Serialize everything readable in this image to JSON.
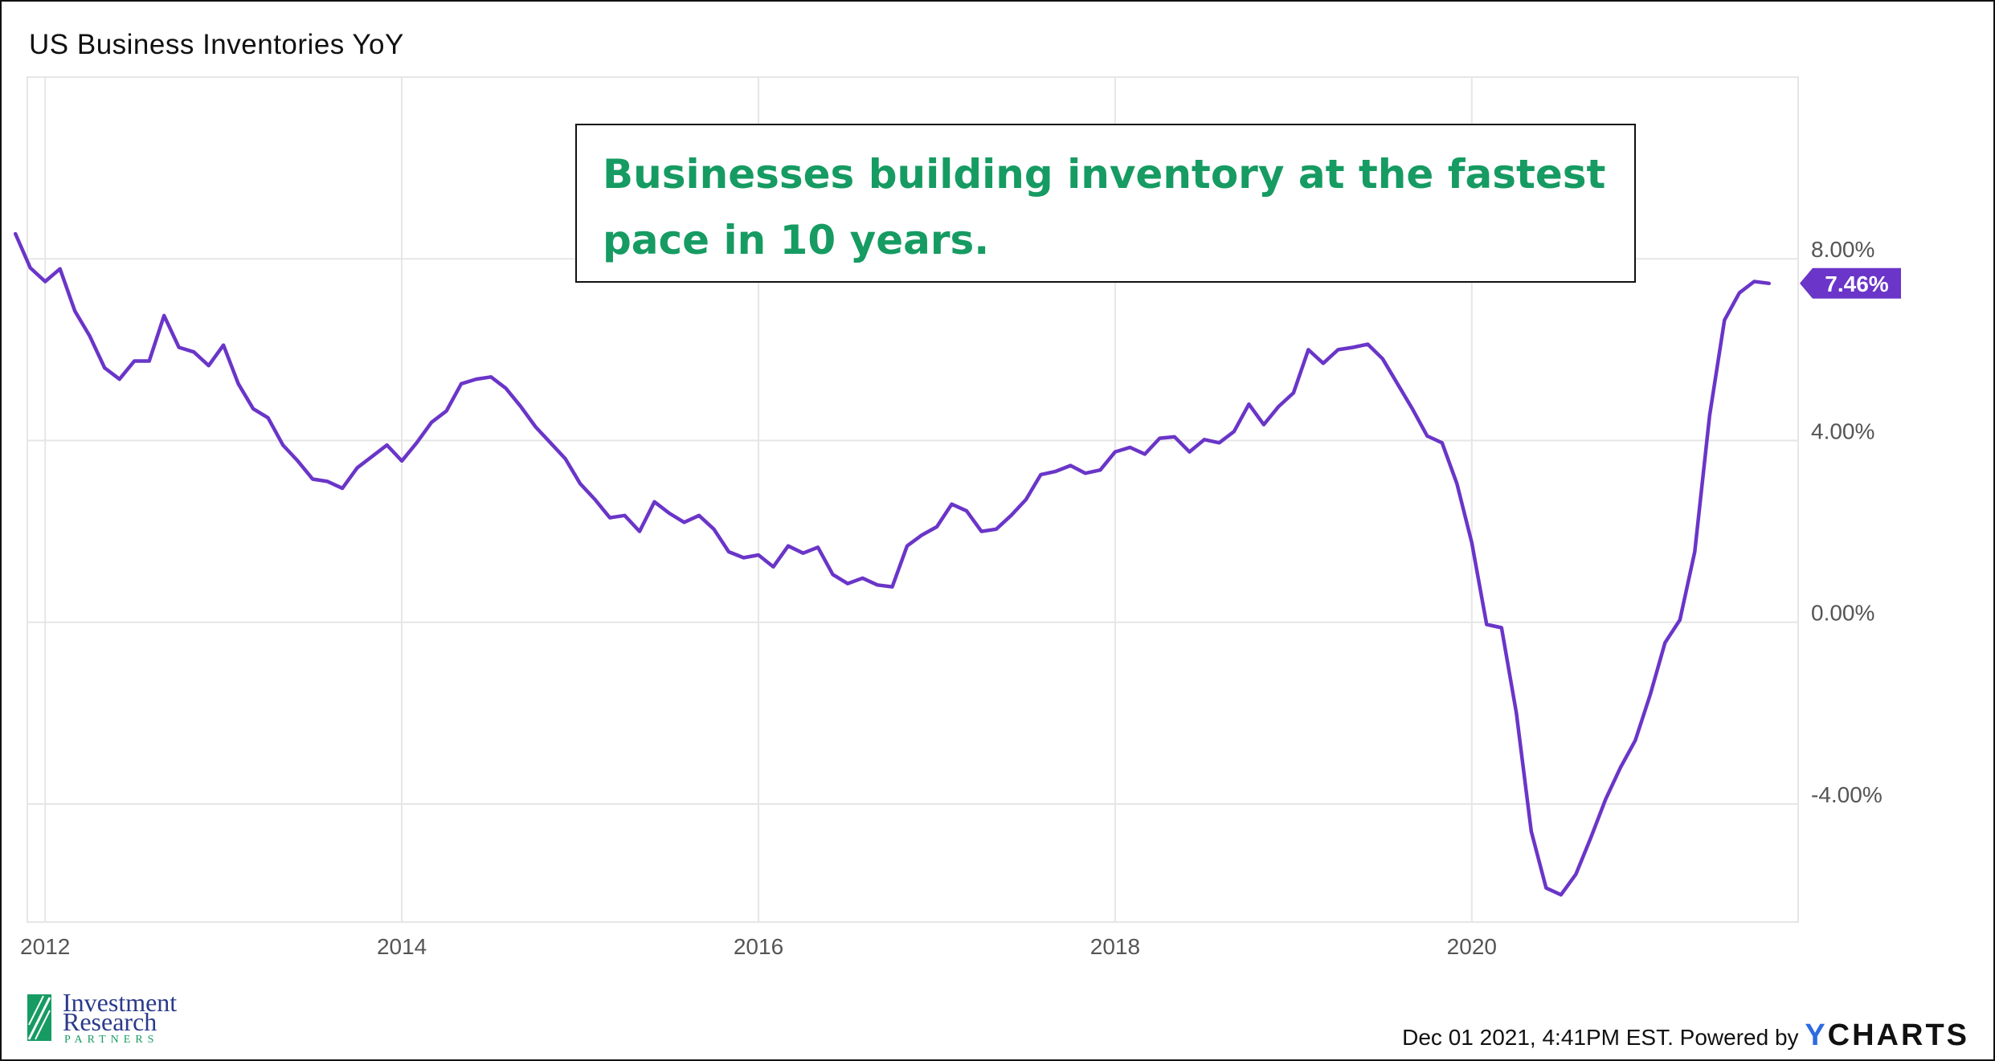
{
  "title": "US Business Inventories YoY",
  "annotation": "Businesses building inventory at the fastest pace in 10 years.",
  "footer": {
    "timestamp": "Dec 01 2021, 4:41PM EST. Powered by",
    "brand_y": "Y",
    "brand_rest": "CHARTS"
  },
  "logo": {
    "line1": "Investment",
    "line2": "Research",
    "line3": "PARTNERS"
  },
  "colors": {
    "series": "#6a35c8",
    "annotation_text": "#169B62",
    "grid": "#e6e6e6"
  },
  "chart_data": {
    "type": "line",
    "title": "US Business Inventories YoY",
    "xlim": [
      2011.9,
      2021.83
    ],
    "ylim": [
      -6.6,
      12.0
    ],
    "x_ticks": [
      {
        "value": 2012,
        "label": "2012"
      },
      {
        "value": 2014,
        "label": "2014"
      },
      {
        "value": 2016,
        "label": "2016"
      },
      {
        "value": 2018,
        "label": "2018"
      },
      {
        "value": 2020,
        "label": "2020"
      }
    ],
    "y_ticks": [
      {
        "value": 8,
        "label": "8.00%"
      },
      {
        "value": 4,
        "label": "4.00%"
      },
      {
        "value": 0,
        "label": "0.00%"
      },
      {
        "value": -4,
        "label": "-4.00%"
      }
    ],
    "last_value_label": "7.46%",
    "series": [
      {
        "start": "2011-11",
        "frequency": "monthly",
        "values": [
          8.55,
          7.8,
          7.5,
          7.78,
          6.85,
          6.3,
          5.6,
          5.35,
          5.75,
          5.75,
          6.75,
          6.05,
          5.95,
          5.65,
          6.1,
          5.25,
          4.7,
          4.5,
          3.9,
          3.55,
          3.15,
          3.1,
          2.95,
          3.4,
          3.65,
          3.9,
          3.55,
          3.95,
          4.4,
          4.65,
          5.25,
          5.35,
          5.4,
          5.15,
          4.75,
          4.3,
          3.95,
          3.6,
          3.05,
          2.7,
          2.3,
          2.35,
          2.0,
          2.65,
          2.4,
          2.2,
          2.35,
          2.05,
          1.55,
          1.42,
          1.48,
          1.22,
          1.68,
          1.52,
          1.65,
          1.05,
          0.85,
          0.97,
          0.82,
          0.78,
          1.68,
          1.92,
          2.1,
          2.6,
          2.45,
          2.0,
          2.05,
          2.35,
          2.7,
          3.25,
          3.32,
          3.45,
          3.28,
          3.35,
          3.75,
          3.85,
          3.7,
          4.05,
          4.08,
          3.75,
          4.02,
          3.95,
          4.2,
          4.8,
          4.35,
          4.75,
          5.05,
          6.0,
          5.7,
          6.0,
          6.05,
          6.12,
          5.8,
          5.25,
          4.7,
          4.1,
          3.95,
          3.05,
          1.75,
          -0.05,
          -0.12,
          -2.0,
          -4.6,
          -5.85,
          -6.0,
          -5.55,
          -4.75,
          -3.9,
          -3.2,
          -2.6,
          -1.6,
          -0.45,
          0.05,
          1.55,
          4.55,
          6.65,
          7.25,
          7.5,
          7.46
        ]
      }
    ]
  }
}
